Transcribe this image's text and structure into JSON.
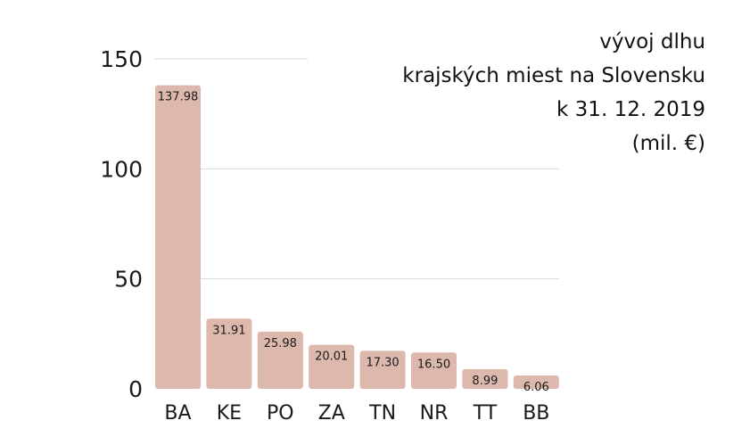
{
  "chart_data": {
    "type": "bar",
    "title_lines": [
      "vývoj dlhu",
      "krajských miest na Slovensku",
      "k 31. 12. 2019",
      "(mil. €)"
    ],
    "categories": [
      "BA",
      "KE",
      "PO",
      "ZA",
      "TN",
      "NR",
      "TT",
      "BB"
    ],
    "values": [
      137.98,
      31.91,
      25.98,
      20.01,
      17.3,
      16.5,
      8.99,
      6.06
    ],
    "value_labels": [
      "137.98",
      "31.91",
      "25.98",
      "20.01",
      "17.30",
      "16.50",
      "8.99",
      "6.06"
    ],
    "y_ticks": [
      "0",
      "50",
      "100",
      "150"
    ],
    "y_tick_values": [
      0,
      50,
      100,
      150
    ],
    "ylim": [
      0,
      150
    ],
    "grid": true,
    "xlabel": "",
    "ylabel": "",
    "bar_color": "#ddb9ad",
    "grid_color": "#d9d9d9"
  }
}
